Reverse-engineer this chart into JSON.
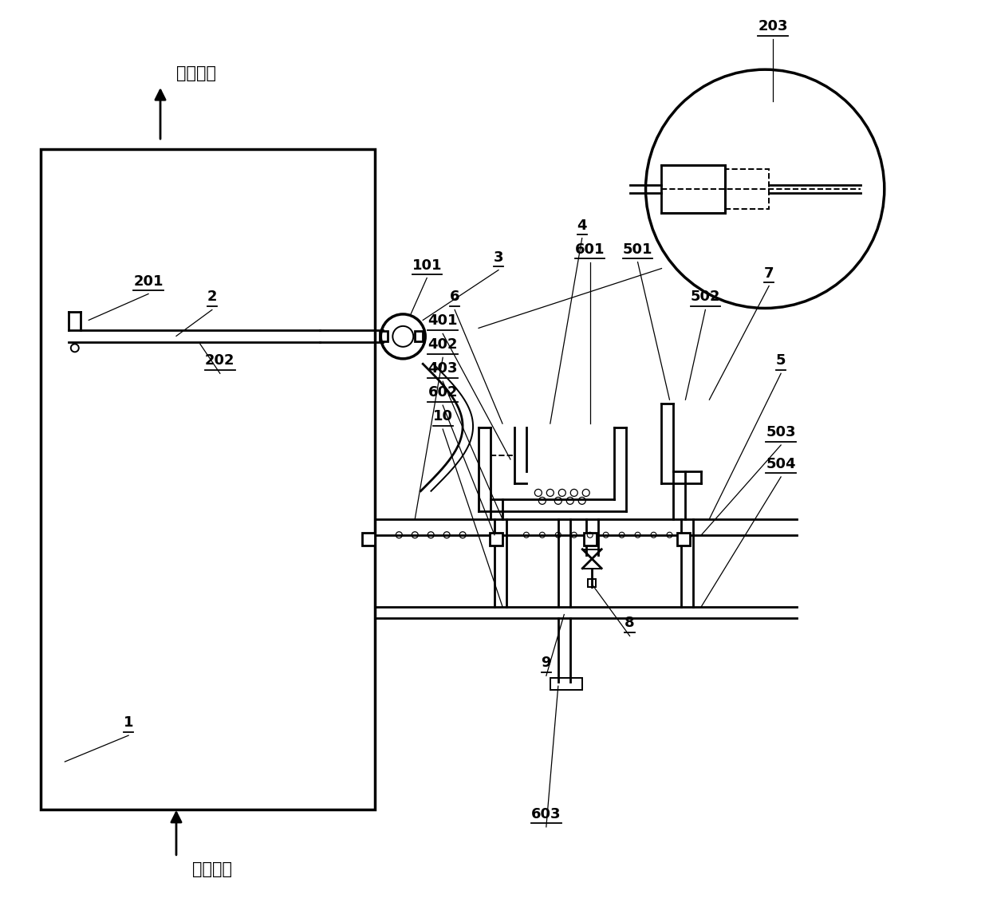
{
  "bg_color": "#ffffff",
  "lc": "#000000",
  "smoke_out": "烟气出口",
  "smoke_in": "烟气入口",
  "fig_w": 12.4,
  "fig_h": 11.36,
  "labels_ul": [
    [
      18.5,
      77.5,
      "201"
    ],
    [
      26.5,
      75.5,
      "2"
    ],
    [
      27.5,
      67.5,
      "202"
    ],
    [
      53.5,
      79.5,
      "101"
    ],
    [
      62.5,
      80.5,
      "3"
    ],
    [
      97.0,
      109.5,
      "203"
    ],
    [
      73.0,
      84.5,
      "4"
    ],
    [
      74.0,
      81.5,
      "601"
    ],
    [
      80.0,
      81.5,
      "501"
    ],
    [
      57.0,
      75.5,
      "6"
    ],
    [
      55.5,
      72.5,
      "401"
    ],
    [
      55.5,
      69.5,
      "402"
    ],
    [
      55.5,
      66.5,
      "403"
    ],
    [
      88.5,
      75.5,
      "502"
    ],
    [
      96.5,
      78.5,
      "7"
    ],
    [
      55.5,
      63.5,
      "602"
    ],
    [
      98.0,
      67.5,
      "5"
    ],
    [
      98.0,
      58.5,
      "503"
    ],
    [
      98.0,
      54.5,
      "504"
    ],
    [
      55.5,
      60.5,
      "10"
    ],
    [
      79.0,
      34.5,
      "8"
    ],
    [
      68.5,
      29.5,
      "9"
    ],
    [
      68.5,
      10.5,
      "603"
    ],
    [
      16.0,
      22.0,
      "1"
    ]
  ]
}
